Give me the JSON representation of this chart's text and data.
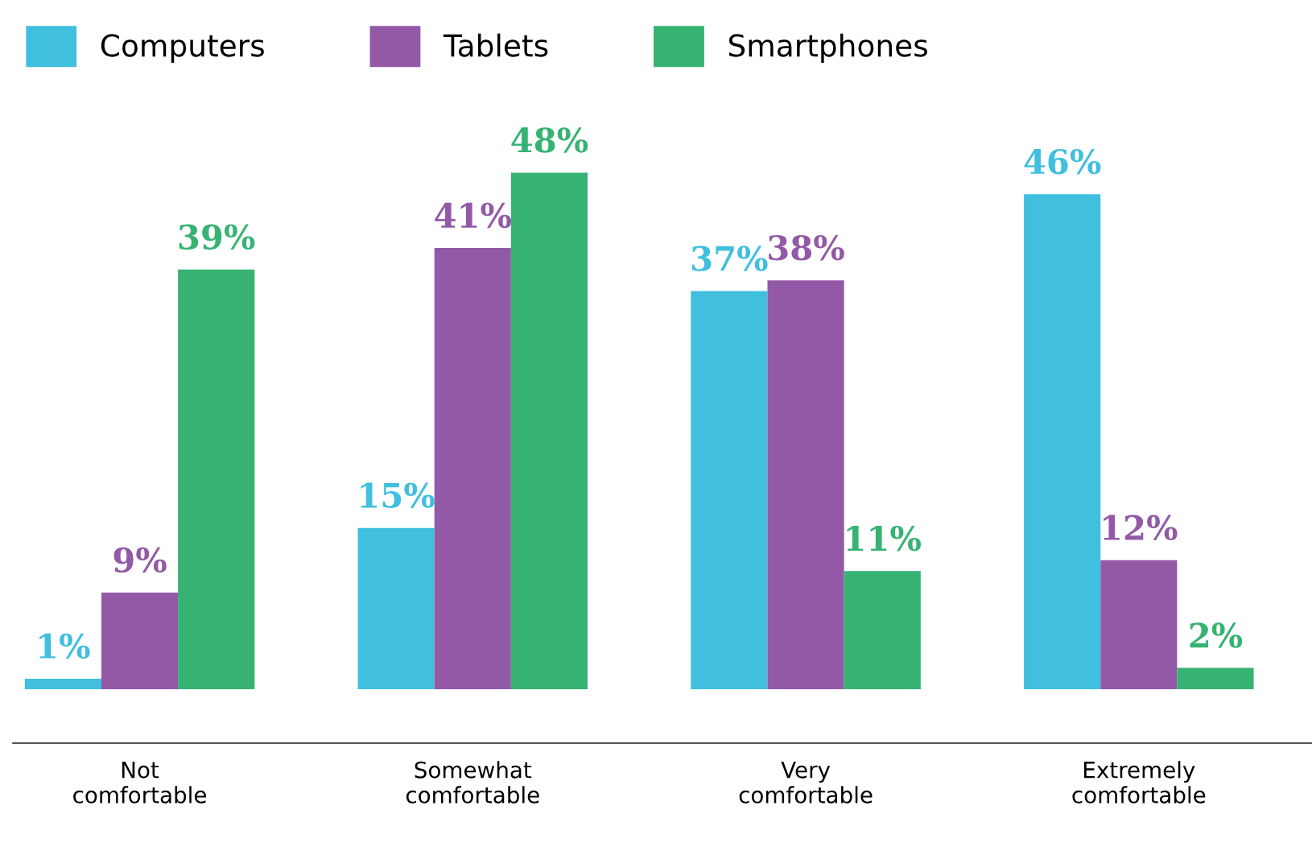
{
  "chart_data": {
    "type": "bar",
    "categories": [
      "Not\ncomfortable",
      "Somewhat\ncomfortable",
      "Very\ncomfortable",
      "Extremely\ncomfortable"
    ],
    "series": [
      {
        "name": "Computers",
        "color": "#40bfdf",
        "values": [
          1,
          15,
          37,
          46
        ],
        "value_labels": [
          "1%",
          "15%",
          "37%",
          "46%"
        ]
      },
      {
        "name": "Tablets",
        "color": "#9359a6",
        "values": [
          9,
          41,
          38,
          12
        ],
        "value_labels": [
          "9%",
          "41%",
          "38%",
          "12%"
        ]
      },
      {
        "name": "Smartphones",
        "color": "#36b372",
        "values": [
          39,
          48,
          11,
          2
        ],
        "value_labels": [
          "39%",
          "48%",
          "11%",
          "2%"
        ]
      }
    ],
    "legend": "top left",
    "grid": false
  }
}
